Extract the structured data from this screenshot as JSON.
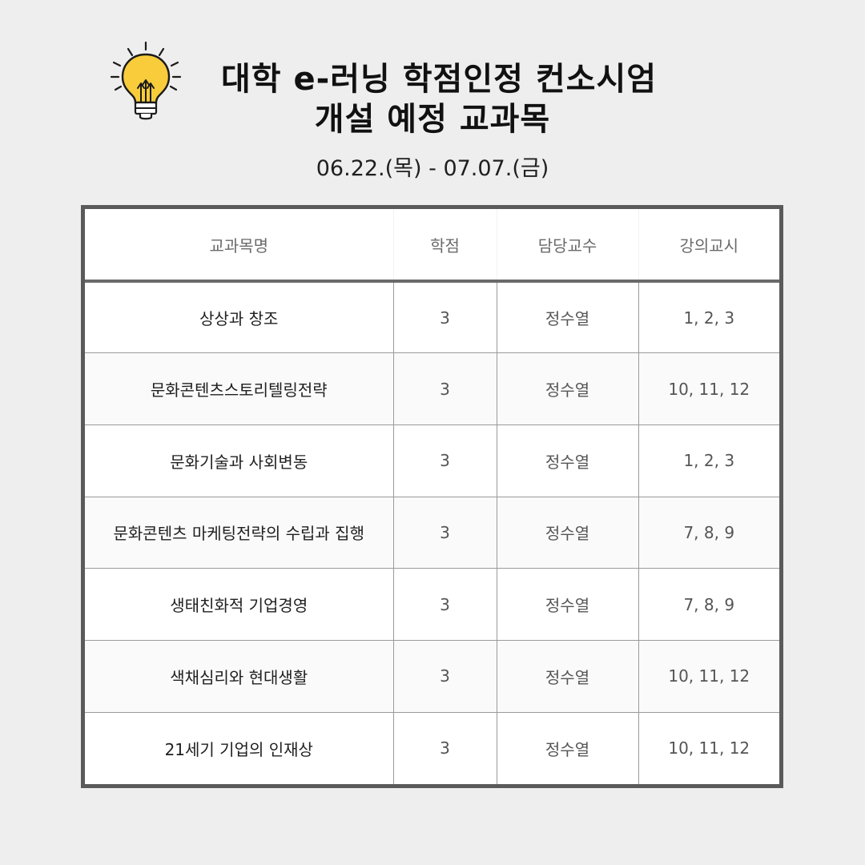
{
  "header": {
    "title_line1": "대학 e-러닝 학점인정 컨소시엄",
    "title_line2": "개설 예정 교과목",
    "date_range": "06.22.(목) - 07.07.(금)",
    "icon": "lightbulb-icon",
    "icon_color": "#f8cc3b"
  },
  "table": {
    "columns": [
      "교과목명",
      "학점",
      "담당교수",
      "강의교시"
    ],
    "rows": [
      {
        "course": "상상과 창조",
        "credits": "3",
        "professor": "정수열",
        "periods": "1, 2, 3"
      },
      {
        "course": "문화콘텐츠스토리텔링전략",
        "credits": "3",
        "professor": "정수열",
        "periods": "10, 11, 12"
      },
      {
        "course": "문화기술과 사회변동",
        "credits": "3",
        "professor": "정수열",
        "periods": "1, 2, 3"
      },
      {
        "course": "문화콘텐츠 마케팅전략의 수립과 집행",
        "credits": "3",
        "professor": "정수열",
        "periods": "7, 8, 9"
      },
      {
        "course": "생태친화적 기업경영",
        "credits": "3",
        "professor": "정수열",
        "periods": "7, 8, 9"
      },
      {
        "course": "색채심리와 현대생활",
        "credits": "3",
        "professor": "정수열",
        "periods": "10, 11, 12"
      },
      {
        "course": "21세기 기업의 인재상",
        "credits": "3",
        "professor": "정수열",
        "periods": "10, 11, 12"
      }
    ]
  }
}
